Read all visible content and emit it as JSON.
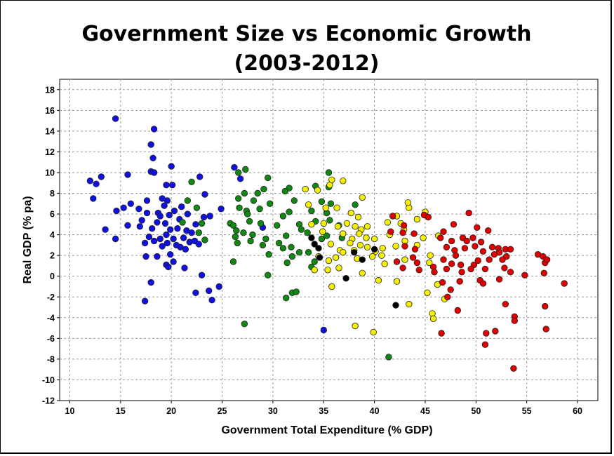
{
  "chart_data": {
    "type": "scatter",
    "title_line1": "Government Size vs Economic Growth",
    "title_line2": "(2003-2012)",
    "xlabel": "Government Total Expenditure (% GDP)",
    "ylabel": "Real GDP (% pa)",
    "xlim": [
      9,
      62
    ],
    "ylim": [
      -12,
      19
    ],
    "xticks": [
      10,
      15,
      20,
      25,
      30,
      35,
      40,
      45,
      50,
      55,
      60
    ],
    "yticks": [
      -12,
      -10,
      -8,
      -6,
      -4,
      -2,
      0,
      2,
      4,
      6,
      8,
      10,
      12,
      14,
      16,
      18
    ],
    "grid": true,
    "legend": "none",
    "series": [
      {
        "color": "#1010e0",
        "points": [
          [
            14.5,
            15.2
          ],
          [
            18.3,
            14.2
          ],
          [
            18.0,
            12.7
          ],
          [
            18.2,
            11.4
          ],
          [
            20.0,
            10.6
          ],
          [
            18.0,
            10.1
          ],
          [
            18.3,
            10.0
          ],
          [
            15.7,
            9.8
          ],
          [
            12.0,
            9.2
          ],
          [
            12.6,
            8.9
          ],
          [
            13.1,
            9.6
          ],
          [
            19.5,
            8.8
          ],
          [
            20.1,
            8.8
          ],
          [
            12.3,
            7.5
          ],
          [
            16.0,
            7.0
          ],
          [
            17.6,
            7.3
          ],
          [
            19.6,
            7.3
          ],
          [
            19.1,
            7.5
          ],
          [
            15.3,
            6.6
          ],
          [
            14.6,
            6.3
          ],
          [
            16.8,
            6.5
          ],
          [
            18.7,
            6.1
          ],
          [
            19.3,
            6.8
          ],
          [
            20.3,
            6.3
          ],
          [
            21.0,
            6.7
          ],
          [
            17.1,
            5.4
          ],
          [
            17.6,
            6.1
          ],
          [
            19.8,
            5.9
          ],
          [
            20.8,
            5.5
          ],
          [
            21.6,
            6.0
          ],
          [
            13.5,
            4.5
          ],
          [
            15.7,
            4.9
          ],
          [
            16.9,
            4.8
          ],
          [
            18.1,
            4.6
          ],
          [
            18.6,
            5.2
          ],
          [
            19.4,
            5.1
          ],
          [
            20.6,
            4.6
          ],
          [
            21.5,
            4.4
          ],
          [
            22.4,
            5.0
          ],
          [
            23.2,
            5.7
          ],
          [
            23.8,
            5.8
          ],
          [
            24.9,
            6.5
          ],
          [
            14.5,
            3.6
          ],
          [
            17.4,
            3.2
          ],
          [
            18.3,
            3.4
          ],
          [
            19.5,
            4.0
          ],
          [
            20.2,
            3.6
          ],
          [
            21.2,
            3.7
          ],
          [
            21.8,
            3.3
          ],
          [
            22.0,
            4.2
          ],
          [
            17.8,
            3.8
          ],
          [
            18.9,
            3.6
          ],
          [
            19.6,
            3.2
          ],
          [
            19.1,
            2.9
          ],
          [
            20.9,
            2.8
          ],
          [
            17.5,
            1.9
          ],
          [
            18.6,
            1.9
          ],
          [
            19.9,
            2.1
          ],
          [
            21.4,
            2.6
          ],
          [
            22.3,
            3.4
          ],
          [
            19.5,
            1.1
          ],
          [
            20.2,
            1.4
          ],
          [
            21.3,
            0.8
          ],
          [
            19.7,
            0.9
          ],
          [
            23.0,
            0.1
          ],
          [
            18.0,
            -0.6
          ],
          [
            23.7,
            -1.4
          ],
          [
            24.7,
            -1.0
          ],
          [
            22.4,
            -1.6
          ],
          [
            17.4,
            -2.4
          ],
          [
            24.0,
            -2.3
          ],
          [
            22.8,
            9.6
          ],
          [
            23.3,
            7.9
          ],
          [
            26.2,
            10.5
          ],
          [
            29.0,
            4.7
          ],
          [
            35.0,
            -5.2
          ],
          [
            26.8,
            9.4
          ],
          [
            20.5,
            3.0
          ],
          [
            22.7,
            3.1
          ],
          [
            18.9,
            5.8
          ],
          [
            19.9,
            4.5
          ]
        ]
      },
      {
        "color": "#118811",
        "points": [
          [
            22.0,
            9.1
          ],
          [
            26.6,
            10.0
          ],
          [
            27.3,
            10.3
          ],
          [
            29.5,
            9.5
          ],
          [
            35.5,
            10.0
          ],
          [
            34.2,
            8.7
          ],
          [
            35.5,
            8.6
          ],
          [
            31.6,
            8.5
          ],
          [
            27.2,
            8.0
          ],
          [
            28.5,
            8.0
          ],
          [
            29.1,
            8.4
          ],
          [
            31.2,
            8.2
          ],
          [
            21.6,
            7.3
          ],
          [
            26.6,
            7.5
          ],
          [
            28.1,
            7.3
          ],
          [
            29.7,
            7.0
          ],
          [
            32.1,
            7.3
          ],
          [
            34.8,
            7.2
          ],
          [
            35.7,
            7.0
          ],
          [
            22.5,
            6.6
          ],
          [
            26.7,
            6.6
          ],
          [
            27.4,
            6.3
          ],
          [
            28.7,
            6.5
          ],
          [
            31.6,
            6.2
          ],
          [
            33.8,
            6.3
          ],
          [
            35.3,
            6.1
          ],
          [
            21.1,
            5.2
          ],
          [
            23.0,
            5.1
          ],
          [
            25.8,
            5.1
          ],
          [
            26.4,
            4.4
          ],
          [
            27.7,
            5.3
          ],
          [
            28.8,
            5.1
          ],
          [
            30.4,
            4.9
          ],
          [
            31.0,
            5.8
          ],
          [
            32.6,
            5.0
          ],
          [
            34.2,
            5.3
          ],
          [
            35.6,
            5.4
          ],
          [
            36.5,
            4.9
          ],
          [
            22.7,
            4.2
          ],
          [
            26.3,
            3.8
          ],
          [
            27.1,
            4.2
          ],
          [
            28.0,
            4.0
          ],
          [
            29.3,
            3.6
          ],
          [
            30.6,
            3.2
          ],
          [
            31.3,
            3.9
          ],
          [
            32.8,
            4.5
          ],
          [
            33.4,
            4.2
          ],
          [
            34.8,
            3.6
          ],
          [
            35.3,
            3.9
          ],
          [
            26.5,
            3.2
          ],
          [
            27.8,
            3.4
          ],
          [
            29.0,
            3.0
          ],
          [
            31.8,
            2.8
          ],
          [
            32.6,
            2.3
          ],
          [
            33.5,
            2.3
          ],
          [
            29.6,
            2.1
          ],
          [
            31.0,
            2.7
          ],
          [
            31.9,
            1.9
          ],
          [
            34.1,
            1.4
          ],
          [
            26.1,
            1.4
          ],
          [
            31.4,
            1.3
          ],
          [
            29.5,
            0.1
          ],
          [
            33.8,
            0.9
          ],
          [
            31.9,
            -1.6
          ],
          [
            32.3,
            -1.5
          ],
          [
            31.3,
            -2.1
          ],
          [
            27.2,
            -4.6
          ],
          [
            41.4,
            -7.8
          ],
          [
            38.1,
            6.9
          ],
          [
            36.8,
            3.7
          ],
          [
            23.3,
            3.5
          ],
          [
            26.1,
            4.9
          ],
          [
            27.5,
            6.0
          ]
        ]
      },
      {
        "color": "#f5f000",
        "points": [
          [
            33.2,
            8.4
          ],
          [
            35.6,
            8.8
          ],
          [
            36.9,
            9.2
          ],
          [
            35.8,
            9.3
          ],
          [
            34.4,
            8.3
          ],
          [
            38.8,
            7.6
          ],
          [
            33.5,
            6.9
          ],
          [
            35.2,
            6.6
          ],
          [
            36.3,
            6.6
          ],
          [
            37.7,
            6.1
          ],
          [
            38.4,
            5.7
          ],
          [
            42.2,
            5.8
          ],
          [
            33.8,
            5.0
          ],
          [
            35.0,
            5.1
          ],
          [
            36.4,
            4.8
          ],
          [
            37.3,
            5.1
          ],
          [
            38.1,
            4.8
          ],
          [
            38.7,
            4.5
          ],
          [
            39.3,
            4.8
          ],
          [
            41.3,
            5.2
          ],
          [
            42.6,
            5.1
          ],
          [
            43.4,
            6.6
          ],
          [
            44.2,
            5.5
          ],
          [
            45.0,
            6.2
          ],
          [
            43.3,
            7.1
          ],
          [
            34.9,
            4.3
          ],
          [
            36.9,
            4.1
          ],
          [
            37.8,
            3.6
          ],
          [
            38.5,
            4.1
          ],
          [
            39.2,
            3.7
          ],
          [
            40.0,
            3.6
          ],
          [
            41.5,
            4.0
          ],
          [
            42.9,
            4.5
          ],
          [
            44.8,
            3.7
          ],
          [
            45.5,
            2.0
          ],
          [
            35.7,
            3.1
          ],
          [
            36.6,
            2.5
          ],
          [
            37.6,
            3.2
          ],
          [
            38.6,
            3.0
          ],
          [
            39.3,
            2.8
          ],
          [
            40.1,
            2.4
          ],
          [
            40.8,
            2.7
          ],
          [
            42.1,
            2.9
          ],
          [
            43.0,
            3.4
          ],
          [
            44.2,
            3.0
          ],
          [
            46.3,
            3.9
          ],
          [
            34.5,
            1.9
          ],
          [
            35.5,
            1.5
          ],
          [
            36.2,
            1.8
          ],
          [
            36.9,
            2.3
          ],
          [
            38.3,
            1.7
          ],
          [
            39.8,
            1.9
          ],
          [
            41.0,
            1.2
          ],
          [
            43.0,
            1.6
          ],
          [
            45.4,
            1.3
          ],
          [
            34.1,
            0.6
          ],
          [
            35.4,
            0.6
          ],
          [
            36.5,
            0.8
          ],
          [
            38.8,
            0.3
          ],
          [
            40.4,
            -0.4
          ],
          [
            42.2,
            -0.5
          ],
          [
            46.2,
            -0.8
          ],
          [
            35.8,
            -1.0
          ],
          [
            45.2,
            -1.6
          ],
          [
            43.4,
            -2.7
          ],
          [
            46.9,
            -2.2
          ],
          [
            45.7,
            -3.6
          ],
          [
            45.8,
            -4.1
          ],
          [
            38.1,
            -4.8
          ],
          [
            39.9,
            -5.4
          ],
          [
            38.0,
            2.5
          ],
          [
            40.7,
            2.0
          ]
        ]
      },
      {
        "color": "#e00000",
        "points": [
          [
            49.3,
            6.1
          ],
          [
            47.8,
            5.0
          ],
          [
            41.8,
            5.8
          ],
          [
            42.9,
            4.9
          ],
          [
            44.9,
            5.9
          ],
          [
            45.3,
            5.7
          ],
          [
            50.1,
            4.7
          ],
          [
            51.2,
            4.4
          ],
          [
            46.8,
            4.3
          ],
          [
            48.7,
            3.7
          ],
          [
            49.7,
            3.7
          ],
          [
            41.6,
            4.3
          ],
          [
            42.8,
            4.2
          ],
          [
            43.9,
            4.1
          ],
          [
            46.5,
            3.7
          ],
          [
            47.6,
            3.4
          ],
          [
            49.1,
            3.4
          ],
          [
            50.5,
            3.3
          ],
          [
            51.6,
            2.8
          ],
          [
            52.2,
            2.7
          ],
          [
            52.9,
            2.6
          ],
          [
            53.4,
            2.6
          ],
          [
            43.0,
            2.9
          ],
          [
            44.0,
            2.6
          ],
          [
            47.1,
            2.8
          ],
          [
            47.9,
            2.5
          ],
          [
            48.9,
            2.7
          ],
          [
            49.9,
            2.9
          ],
          [
            50.7,
            2.4
          ],
          [
            52.3,
            2.3
          ],
          [
            53.0,
            1.9
          ],
          [
            56.1,
            2.1
          ],
          [
            56.6,
            1.9
          ],
          [
            42.2,
            1.4
          ],
          [
            43.8,
            1.8
          ],
          [
            46.8,
            1.6
          ],
          [
            47.6,
            1.2
          ],
          [
            48.5,
            1.1
          ],
          [
            49.8,
            1.1
          ],
          [
            51.3,
            1.6
          ],
          [
            52.6,
            1.6
          ],
          [
            56.8,
            1.3
          ],
          [
            57.0,
            1.6
          ],
          [
            42.8,
            0.8
          ],
          [
            44.4,
            0.6
          ],
          [
            45.8,
            0.9
          ],
          [
            47.1,
            0.7
          ],
          [
            48.6,
            0.4
          ],
          [
            49.5,
            0.7
          ],
          [
            50.9,
            0.7
          ],
          [
            53.4,
            0.4
          ],
          [
            54.8,
            0.1
          ],
          [
            56.7,
            0.3
          ],
          [
            46.7,
            -0.6
          ],
          [
            48.4,
            -0.5
          ],
          [
            50.4,
            -0.4
          ],
          [
            52.3,
            -0.3
          ],
          [
            47.5,
            -1.3
          ],
          [
            50.7,
            -0.7
          ],
          [
            58.7,
            -0.7
          ],
          [
            47.2,
            -2.0
          ],
          [
            48.2,
            -3.3
          ],
          [
            52.9,
            -2.7
          ],
          [
            56.8,
            -2.9
          ],
          [
            53.8,
            -3.9
          ],
          [
            53.8,
            -4.3
          ],
          [
            46.6,
            -5.5
          ],
          [
            51.0,
            -5.5
          ],
          [
            51.9,
            -5.3
          ],
          [
            56.9,
            -5.1
          ],
          [
            50.9,
            -6.6
          ],
          [
            53.7,
            -8.9
          ],
          [
            44.2,
            1.3
          ],
          [
            45.9,
            0.4
          ],
          [
            48.0,
            2.0
          ],
          [
            50.2,
            1.5
          ],
          [
            51.8,
            2.1
          ],
          [
            52.8,
            0.8
          ]
        ]
      },
      {
        "color": "#000000",
        "points": [
          [
            33.8,
            3.7
          ],
          [
            34.1,
            3.1
          ],
          [
            34.6,
            1.8
          ],
          [
            34.5,
            2.7
          ],
          [
            37.2,
            -0.2
          ],
          [
            38.0,
            2.3
          ],
          [
            38.8,
            1.6
          ],
          [
            40.0,
            2.6
          ],
          [
            42.1,
            -2.8
          ]
        ]
      }
    ]
  }
}
